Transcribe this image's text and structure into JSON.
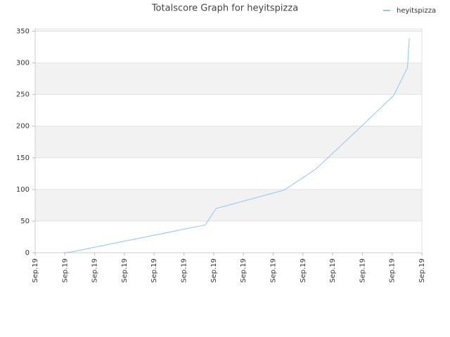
{
  "chart_data": {
    "type": "line",
    "title": "Totalscore Graph for heyitspizza",
    "x": [
      0.95,
      1.18,
      5.72,
      6.08,
      8.37,
      9.43,
      10.95,
      12.06,
      12.51,
      12.53,
      12.56,
      12.58
    ],
    "series": [
      {
        "name": "heyitspizza",
        "color": "#8ec6f0",
        "values": [
          0,
          1,
          44,
          70,
          99,
          132,
          199,
          249,
          292,
          302,
          328,
          339
        ]
      }
    ],
    "xlim": [
      0,
      13
    ],
    "xticks": [
      {
        "value": 0,
        "label": "Sep.19"
      },
      {
        "value": 1,
        "label": "Sep.19"
      },
      {
        "value": 2,
        "label": "Sep.19"
      },
      {
        "value": 3,
        "label": "Sep.19"
      },
      {
        "value": 4,
        "label": "Sep.19"
      },
      {
        "value": 5,
        "label": "Sep.19"
      },
      {
        "value": 6,
        "label": "Sep.19"
      },
      {
        "value": 7,
        "label": "Sep.19"
      },
      {
        "value": 8,
        "label": "Sep.19"
      },
      {
        "value": 9,
        "label": "Sep.19"
      },
      {
        "value": 10,
        "label": "Sep.19"
      },
      {
        "value": 11,
        "label": "Sep.19"
      },
      {
        "value": 12,
        "label": "Sep.19"
      },
      {
        "value": 13,
        "label": "Sep.19"
      }
    ],
    "ylim": [
      0,
      355
    ],
    "yticks": [
      0,
      50,
      100,
      150,
      200,
      250,
      300,
      350
    ],
    "grid": true,
    "legend": "top-right"
  }
}
